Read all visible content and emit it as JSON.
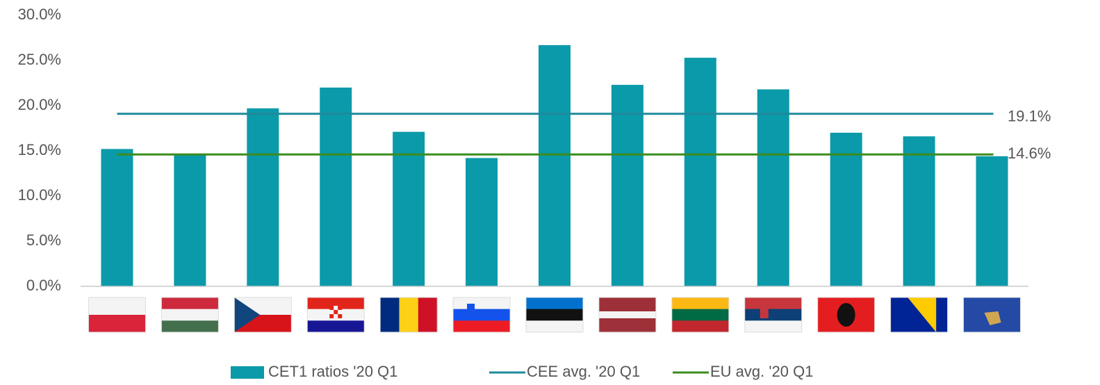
{
  "chart_data": {
    "type": "bar",
    "categories": [
      null,
      null,
      null,
      null,
      null,
      null,
      null,
      null,
      null,
      null,
      null,
      null,
      null
    ],
    "series": [
      {
        "name": "CET1 ratios '20 Q1",
        "color": "#0b9aa9",
        "values": [
          15.2,
          14.6,
          19.7,
          22.0,
          17.1,
          14.2,
          26.7,
          22.3,
          25.3,
          21.8,
          17.0,
          16.6,
          14.4
        ]
      }
    ],
    "lines": [
      {
        "name": "CEE avg. '20 Q1",
        "color": "#1f8a9c",
        "value": 19.1,
        "value_label": "19.1%"
      },
      {
        "name": "EU avg. '20 Q1",
        "color": "#3c8c1e",
        "value": 14.6,
        "value_label": "14.6%"
      }
    ],
    "ylim": [
      0,
      30
    ],
    "yticks": [
      {
        "value": 0,
        "label": "0.0%"
      },
      {
        "value": 5,
        "label": "5.0%"
      },
      {
        "value": 10,
        "label": "10.0%"
      },
      {
        "value": 15,
        "label": "15.0%"
      },
      {
        "value": 20,
        "label": "20.0%"
      },
      {
        "value": 25,
        "label": "25.0%"
      },
      {
        "value": 30,
        "label": "30.0%"
      }
    ],
    "grid": false,
    "legend": "bottom"
  }
}
